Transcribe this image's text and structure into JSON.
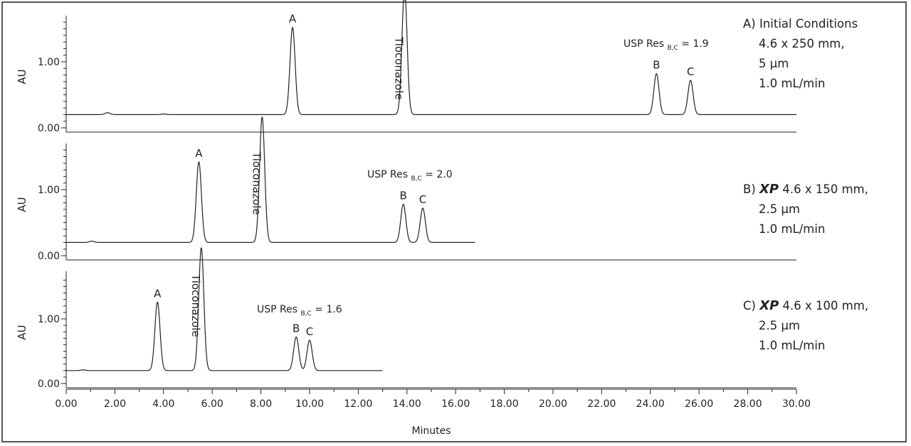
{
  "chart_data": [
    {
      "type": "line",
      "panel": "A",
      "ylabel": "AU",
      "y_ticks": [
        "0.00",
        "1.00"
      ],
      "ylim": [
        0.0,
        1.62
      ],
      "baseline_au": 0.2,
      "x_end_minutes": 30.0,
      "resolution_label": "USP Res",
      "resolution_subscript": "B,C",
      "resolution_value": "= 1.9",
      "peaks": [
        {
          "label": "A",
          "time": 9.3,
          "height": 1.32
        },
        {
          "label": "Tioconazole",
          "time": 13.9,
          "height": 1.9,
          "offscale": true
        },
        {
          "label": "B",
          "time": 24.25,
          "height": 0.62
        },
        {
          "label": "C",
          "time": 25.65,
          "height": 0.52
        }
      ],
      "minor_peaks": [
        {
          "time": 1.7,
          "height": 0.03
        },
        {
          "time": 4.0,
          "height": 0.01
        }
      ]
    },
    {
      "type": "line",
      "panel": "B",
      "ylabel": "AU",
      "y_ticks": [
        "0.00",
        "1.00"
      ],
      "ylim": [
        0.0,
        1.62
      ],
      "baseline_au": 0.2,
      "x_end_minutes": 16.8,
      "resolution_label": "USP Res",
      "resolution_subscript": "B,C",
      "resolution_value": "= 2.0",
      "peaks": [
        {
          "label": "A",
          "time": 5.45,
          "height": 1.22
        },
        {
          "label": "Tioconazole",
          "time": 8.05,
          "height": 1.9,
          "offscale": true
        },
        {
          "label": "B",
          "time": 13.85,
          "height": 0.58
        },
        {
          "label": "C",
          "time": 14.65,
          "height": 0.52
        }
      ],
      "minor_peaks": [
        {
          "time": 1.05,
          "height": 0.02
        }
      ]
    },
    {
      "type": "line",
      "panel": "C",
      "ylabel": "AU",
      "y_ticks": [
        "0.00",
        "1.00"
      ],
      "ylim": [
        0.0,
        1.62
      ],
      "baseline_au": 0.2,
      "x_end_minutes": 13.0,
      "resolution_label": "USP Res",
      "resolution_subscript": "B,C",
      "resolution_value": "= 1.6",
      "peaks": [
        {
          "label": "A",
          "time": 3.75,
          "height": 1.06
        },
        {
          "label": "Tioconazole",
          "time": 5.55,
          "height": 1.9,
          "offscale": true
        },
        {
          "label": "B",
          "time": 9.45,
          "height": 0.52
        },
        {
          "label": "C",
          "time": 10.0,
          "height": 0.47
        }
      ],
      "minor_peaks": [
        {
          "time": 0.7,
          "height": 0.01
        }
      ]
    }
  ],
  "x_axis": {
    "title": "Minutes",
    "min": 0.0,
    "max": 30.0,
    "tick_labels": [
      "0.00",
      "2.00",
      "4.00",
      "6.00",
      "8.00",
      "10.00",
      "12.00",
      "14.00",
      "16.00",
      "18.00",
      "20.00",
      "22.00",
      "24.00",
      "26.00",
      "28.00",
      "30.00"
    ]
  },
  "legends": {
    "a": {
      "line1": "A) Initial Conditions",
      "line2": "4.6 x 250 mm,",
      "line3": "5 µm",
      "line4": "1.0 mL/min"
    },
    "b": {
      "prefix": "B)",
      "brand": "XP",
      "line1_rest": "4.6 x 150 mm,",
      "line2": "2.5 µm",
      "line3": "1.0 mL/min"
    },
    "c": {
      "prefix": "C)",
      "brand": "XP",
      "line1_rest": "4.6 x 100 mm,",
      "line2": "2.5 µm",
      "line3": "1.0 mL/min"
    }
  }
}
